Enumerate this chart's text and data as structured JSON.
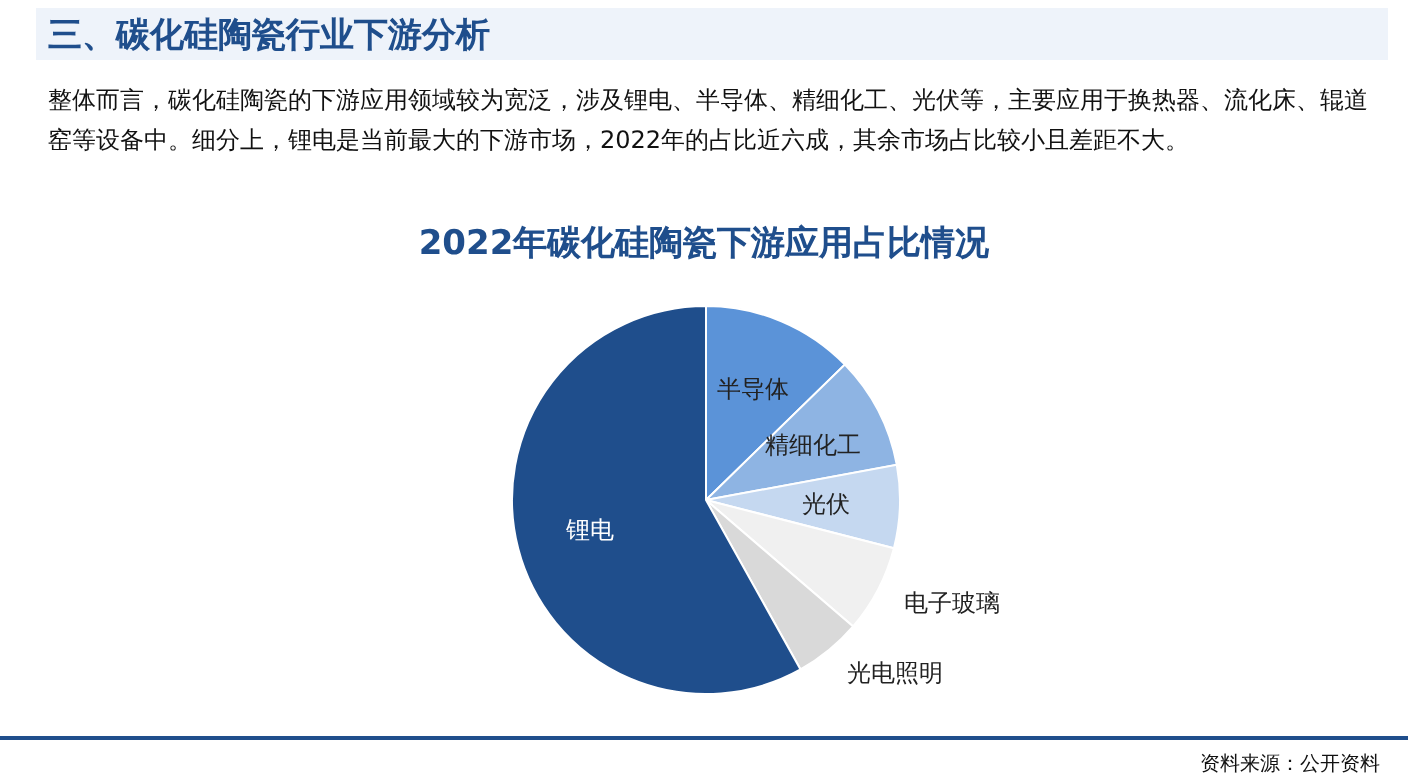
{
  "chart_data": {
    "type": "pie",
    "title": "2022年碳化硅陶瓷下游应用占比情况",
    "categories": [
      "半导体",
      "精细化工",
      "光伏",
      "电子玻璃",
      "光电照明",
      "锂电"
    ],
    "values": [
      12.7,
      9.4,
      6.9,
      7.3,
      5.6,
      58.1
    ],
    "colors": [
      "#5b93d8",
      "#8eb4e3",
      "#c5d8f0",
      "#f0f0f0",
      "#d9d9d9",
      "#1f4e8c"
    ],
    "annotations": [
      "三、碳化硅陶瓷行业下游分析",
      "整体而言，碳化硅陶瓷的下游应用领域较为宽泛，涉及锂电、半导体、精细化工、光伏等，主要应用于换热器、流化床、辊道窑等设备中。细分上，锂电是当前最大的下游市场，2022年的占比近六成，其余市场占比较小且差距不大。",
      "资料来源：公开资料"
    ]
  }
}
